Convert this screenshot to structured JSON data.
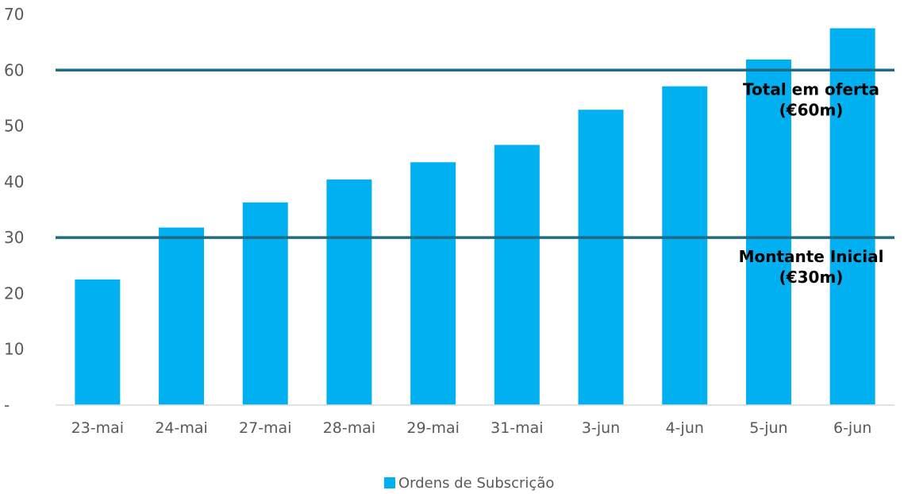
{
  "chart_data": {
    "type": "bar",
    "categories": [
      "23-mai",
      "24-mai",
      "27-mai",
      "28-mai",
      "29-mai",
      "31-mai",
      "3-jun",
      "4-jun",
      "5-jun",
      "6-jun"
    ],
    "series": [
      {
        "name": "Ordens de Subscrição",
        "values": [
          22.5,
          31.8,
          36.3,
          40.4,
          43.5,
          46.6,
          52.9,
          57.1,
          61.9,
          67.5
        ],
        "color": "#00B0F0"
      }
    ],
    "y_ticks": [
      "-",
      "10",
      "20",
      "30",
      "40",
      "50",
      "60",
      "70"
    ],
    "ylim": [
      0,
      70
    ],
    "title": "",
    "xlabel": "",
    "ylabel": "",
    "grid": false,
    "legend": "bottom-center",
    "reference_lines": [
      {
        "value": 60,
        "label_lines": [
          "Total em oferta",
          "(€60m)"
        ],
        "color": "#1F6B87"
      },
      {
        "value": 30,
        "label_lines": [
          "Montante Inicial",
          "(€30m)"
        ],
        "color": "#1F6B87"
      }
    ]
  }
}
